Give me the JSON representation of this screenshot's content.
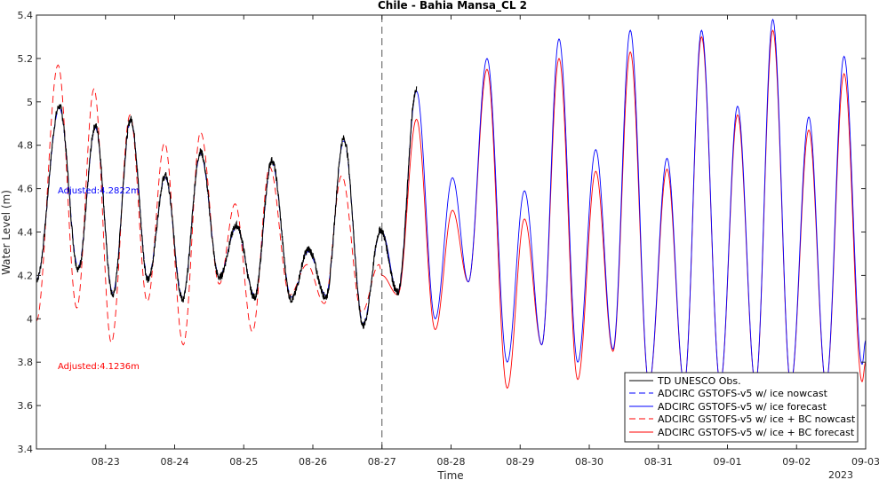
{
  "chart_data": {
    "type": "line",
    "title": "Chile - Bahia Mansa_CL 2",
    "xlabel": "Time",
    "ylabel": "Water Level (m)",
    "year_label": "2023",
    "xlim": [
      "2023-08-22",
      "2023-09-03"
    ],
    "ylim": [
      3.4,
      5.4
    ],
    "y_ticks": [
      3.4,
      3.6,
      3.8,
      4,
      4.2,
      4.4,
      4.6,
      4.8,
      5,
      5.2,
      5.4
    ],
    "x_ticks": [
      "08-23",
      "08-24",
      "08-25",
      "08-26",
      "08-27",
      "08-28",
      "08-29",
      "08-30",
      "08-31",
      "09-01",
      "09-02",
      "09-03"
    ],
    "grid": false,
    "legend_position": "bottom-right",
    "nowcast_forecast_boundary": "08-27",
    "annotations": [
      {
        "text": "Adjusted:4.2822m",
        "color": "#0000ff"
      },
      {
        "text": "Adjusted:4.1236m",
        "color": "#ff0000"
      }
    ],
    "series": [
      {
        "name": "TD UNESCO Obs.",
        "color": "#000000",
        "style": "solid",
        "extrema": [
          [
            "08-22 00:00",
            4.18
          ],
          [
            "08-22 08:00",
            4.98
          ],
          [
            "08-22 14:30",
            4.23
          ],
          [
            "08-22 20:30",
            4.89
          ],
          [
            "08-23 02:30",
            4.11
          ],
          [
            "08-23 08:45",
            4.92
          ],
          [
            "08-23 14:45",
            4.18
          ],
          [
            "08-23 20:45",
            4.66
          ],
          [
            "08-24 02:45",
            4.09
          ],
          [
            "08-24 09:00",
            4.77
          ],
          [
            "08-24 15:30",
            4.19
          ],
          [
            "08-24 21:30",
            4.43
          ],
          [
            "08-25 03:45",
            4.1
          ],
          [
            "08-25 09:45",
            4.73
          ],
          [
            "08-25 16:30",
            4.09
          ],
          [
            "08-25 22:30",
            4.32
          ],
          [
            "08-26 04:30",
            4.1
          ],
          [
            "08-26 10:45",
            4.83
          ],
          [
            "08-26 17:30",
            3.97
          ],
          [
            "08-26 23:30",
            4.41
          ],
          [
            "08-27 05:30",
            4.12
          ],
          [
            "08-27 12:00",
            5.06
          ]
        ]
      },
      {
        "name": "ADCIRC GSTOFS-v5  w/ ice nowcast",
        "color": "#0000ff",
        "style": "dashed",
        "extrema": [
          [
            "08-22 00:00",
            4.18
          ],
          [
            "08-22 08:00",
            4.97
          ],
          [
            "08-22 14:30",
            4.24
          ],
          [
            "08-22 20:30",
            4.88
          ],
          [
            "08-23 02:30",
            4.12
          ],
          [
            "08-23 08:45",
            4.91
          ],
          [
            "08-23 14:45",
            4.19
          ],
          [
            "08-23 20:45",
            4.65
          ],
          [
            "08-24 02:45",
            4.1
          ],
          [
            "08-24 09:00",
            4.76
          ],
          [
            "08-24 15:30",
            4.2
          ],
          [
            "08-24 21:30",
            4.42
          ],
          [
            "08-25 03:45",
            4.11
          ],
          [
            "08-25 09:45",
            4.72
          ],
          [
            "08-25 16:30",
            4.1
          ],
          [
            "08-25 22:30",
            4.31
          ],
          [
            "08-26 04:30",
            4.11
          ],
          [
            "08-26 10:45",
            4.82
          ],
          [
            "08-26 17:30",
            3.98
          ],
          [
            "08-26 23:30",
            4.4
          ],
          [
            "08-27 00:00",
            4.4
          ]
        ]
      },
      {
        "name": "ADCIRC GSTOFS-v5  w/ ice forecast",
        "color": "#0000ff",
        "style": "solid",
        "extrema": [
          [
            "08-27 00:00",
            4.4
          ],
          [
            "08-27 05:30",
            4.12
          ],
          [
            "08-27 12:00",
            5.05
          ],
          [
            "08-27 18:30",
            4.0
          ],
          [
            "08-28 00:30",
            4.65
          ],
          [
            "08-28 06:00",
            4.17
          ],
          [
            "08-28 12:30",
            5.2
          ],
          [
            "08-28 19:30",
            3.8
          ],
          [
            "08-29 01:30",
            4.59
          ],
          [
            "08-29 07:30",
            3.88
          ],
          [
            "08-29 13:30",
            5.29
          ],
          [
            "08-29 20:00",
            3.8
          ],
          [
            "08-30 02:15",
            4.78
          ],
          [
            "08-30 08:15",
            3.86
          ],
          [
            "08-30 14:15",
            5.33
          ],
          [
            "08-30 20:45",
            3.7
          ],
          [
            "08-31 03:00",
            4.74
          ],
          [
            "08-31 09:00",
            3.7
          ],
          [
            "08-31 15:00",
            5.33
          ],
          [
            "08-31 21:30",
            3.7
          ],
          [
            "09-01 03:30",
            4.98
          ],
          [
            "09-01 09:45",
            3.7
          ],
          [
            "09-01 15:45",
            5.38
          ],
          [
            "09-01 22:00",
            3.7
          ],
          [
            "09-02 04:15",
            4.93
          ],
          [
            "09-02 10:15",
            3.7
          ],
          [
            "09-02 16:30",
            5.21
          ],
          [
            "09-02 22:45",
            3.79
          ],
          [
            "09-03 00:00",
            3.9
          ]
        ]
      },
      {
        "name": "ADCIRC GSTOFS-v5  w/ ice + BC nowcast",
        "color": "#ff0000",
        "style": "dashed",
        "extrema": [
          [
            "08-22 00:00",
            3.99
          ],
          [
            "08-22 07:30",
            5.17
          ],
          [
            "08-22 14:00",
            4.05
          ],
          [
            "08-22 20:00",
            5.06
          ],
          [
            "08-23 02:00",
            3.89
          ],
          [
            "08-23 08:30",
            4.94
          ],
          [
            "08-23 14:30",
            4.08
          ],
          [
            "08-23 20:30",
            4.81
          ],
          [
            "08-24 03:00",
            3.88
          ],
          [
            "08-24 09:00",
            4.86
          ],
          [
            "08-24 15:30",
            4.16
          ],
          [
            "08-24 21:00",
            4.53
          ],
          [
            "08-25 03:00",
            3.94
          ],
          [
            "08-25 09:00",
            4.7
          ],
          [
            "08-25 16:00",
            4.11
          ],
          [
            "08-25 22:00",
            4.25
          ],
          [
            "08-26 04:00",
            4.07
          ],
          [
            "08-26 10:00",
            4.66
          ],
          [
            "08-26 17:00",
            4.03
          ],
          [
            "08-26 23:00",
            4.25
          ],
          [
            "08-27 00:00",
            4.2
          ]
        ]
      },
      {
        "name": "ADCIRC GSTOFS-v5  w/ ice + BC forecast",
        "color": "#ff0000",
        "style": "solid",
        "extrema": [
          [
            "08-27 00:00",
            4.2
          ],
          [
            "08-27 05:30",
            4.11
          ],
          [
            "08-27 12:00",
            4.92
          ],
          [
            "08-27 18:30",
            3.95
          ],
          [
            "08-28 00:30",
            4.5
          ],
          [
            "08-28 06:00",
            4.17
          ],
          [
            "08-28 12:30",
            5.15
          ],
          [
            "08-28 19:30",
            3.68
          ],
          [
            "08-29 01:30",
            4.46
          ],
          [
            "08-29 07:30",
            3.88
          ],
          [
            "08-29 13:30",
            5.2
          ],
          [
            "08-29 20:00",
            3.72
          ],
          [
            "08-30 02:15",
            4.68
          ],
          [
            "08-30 08:15",
            3.85
          ],
          [
            "08-30 14:15",
            5.23
          ],
          [
            "08-30 20:45",
            3.7
          ],
          [
            "08-31 03:00",
            4.69
          ],
          [
            "08-31 09:00",
            3.7
          ],
          [
            "08-31 15:00",
            5.3
          ],
          [
            "08-31 21:30",
            3.7
          ],
          [
            "09-01 03:30",
            4.94
          ],
          [
            "09-01 09:45",
            3.7
          ],
          [
            "09-01 15:45",
            5.33
          ],
          [
            "09-01 22:00",
            3.7
          ],
          [
            "09-02 04:15",
            4.87
          ],
          [
            "09-02 10:15",
            3.7
          ],
          [
            "09-02 16:30",
            5.13
          ],
          [
            "09-02 22:45",
            3.71
          ],
          [
            "09-03 00:00",
            3.8
          ]
        ]
      }
    ]
  }
}
